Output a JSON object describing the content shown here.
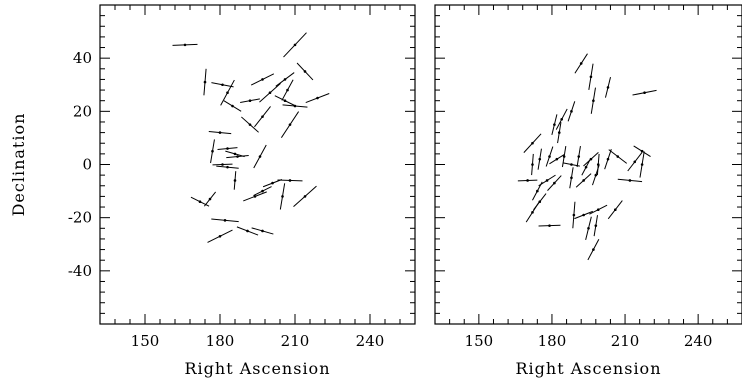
{
  "chart_data": [
    {
      "type": "scatter",
      "marker": "oriented line segment",
      "xlabel": "Right Ascension",
      "ylabel": "Declination",
      "xlim": [
        132,
        258
      ],
      "ylim": [
        -60,
        60
      ],
      "xticks": [
        150,
        180,
        210,
        240
      ],
      "yticks": [
        -40,
        -20,
        0,
        20,
        40
      ],
      "grid": false,
      "vectors": [
        {
          "x": 166,
          "y": 45,
          "len": 10,
          "angle": 2
        },
        {
          "x": 210,
          "y": 45,
          "len": 13,
          "angle": 45
        },
        {
          "x": 174,
          "y": 31,
          "len": 10,
          "angle": 85
        },
        {
          "x": 181,
          "y": 30,
          "len": 9,
          "angle": -10
        },
        {
          "x": 183,
          "y": 27,
          "len": 11,
          "angle": 60
        },
        {
          "x": 197,
          "y": 32,
          "len": 10,
          "angle": 25
        },
        {
          "x": 206,
          "y": 32,
          "len": 9,
          "angle": 35
        },
        {
          "x": 214,
          "y": 35,
          "len": 9,
          "angle": -45
        },
        {
          "x": 200,
          "y": 27,
          "len": 11,
          "angle": 40
        },
        {
          "x": 207,
          "y": 28,
          "len": 9,
          "angle": 60
        },
        {
          "x": 219,
          "y": 25,
          "len": 10,
          "angle": 20
        },
        {
          "x": 192,
          "y": 24,
          "len": 8,
          "angle": 10
        },
        {
          "x": 185,
          "y": 22,
          "len": 8,
          "angle": -30
        },
        {
          "x": 210,
          "y": 22,
          "len": 10,
          "angle": -5
        },
        {
          "x": 206,
          "y": 24,
          "len": 9,
          "angle": -25
        },
        {
          "x": 197,
          "y": 18,
          "len": 10,
          "angle": 50
        },
        {
          "x": 192,
          "y": 15,
          "len": 9,
          "angle": -40
        },
        {
          "x": 208,
          "y": 15,
          "len": 12,
          "angle": 55
        },
        {
          "x": 180,
          "y": 12,
          "len": 9,
          "angle": -5
        },
        {
          "x": 177,
          "y": 5,
          "len": 9,
          "angle": 80
        },
        {
          "x": 183,
          "y": 6,
          "len": 8,
          "angle": 5
        },
        {
          "x": 186,
          "y": 4,
          "len": 8,
          "angle": -15
        },
        {
          "x": 187,
          "y": 3,
          "len": 9,
          "angle": 5
        },
        {
          "x": 181,
          "y": 0,
          "len": 8,
          "angle": 2
        },
        {
          "x": 183,
          "y": -1,
          "len": 9,
          "angle": -5
        },
        {
          "x": 196,
          "y": 3,
          "len": 10,
          "angle": 60
        },
        {
          "x": 186,
          "y": -6,
          "len": 7,
          "angle": 85
        },
        {
          "x": 201,
          "y": -7,
          "len": 8,
          "angle": 20
        },
        {
          "x": 208,
          "y": -6,
          "len": 10,
          "angle": -2
        },
        {
          "x": 205,
          "y": -12,
          "len": 10,
          "angle": 80
        },
        {
          "x": 194,
          "y": -12,
          "len": 10,
          "angle": 20
        },
        {
          "x": 197,
          "y": -10,
          "len": 8,
          "angle": 25
        },
        {
          "x": 214,
          "y": -12,
          "len": 12,
          "angle": 40
        },
        {
          "x": 172,
          "y": -14,
          "len": 8,
          "angle": -25
        },
        {
          "x": 176,
          "y": -13,
          "len": 7,
          "angle": 50
        },
        {
          "x": 182,
          "y": -21,
          "len": 11,
          "angle": -5
        },
        {
          "x": 180,
          "y": -27,
          "len": 11,
          "angle": 25
        },
        {
          "x": 191,
          "y": -25,
          "len": 9,
          "angle": -20
        },
        {
          "x": 197,
          "y": -25,
          "len": 9,
          "angle": -15
        }
      ]
    },
    {
      "type": "scatter",
      "marker": "oriented line segment",
      "xlabel": "Right Ascension",
      "ylabel": "",
      "xlim": [
        132,
        258
      ],
      "ylim": [
        -60,
        60
      ],
      "xticks": [
        150,
        180,
        210,
        240
      ],
      "yticks": [
        -40,
        -20,
        0,
        20,
        40
      ],
      "grid": false,
      "vectors": [
        {
          "x": 192,
          "y": 38,
          "len": 9,
          "angle": 55
        },
        {
          "x": 196,
          "y": 33,
          "len": 10,
          "angle": 80
        },
        {
          "x": 197,
          "y": 24,
          "len": 10,
          "angle": 80
        },
        {
          "x": 203,
          "y": 29,
          "len": 8,
          "angle": 75
        },
        {
          "x": 218,
          "y": 27,
          "len": 10,
          "angle": 10
        },
        {
          "x": 188,
          "y": 20,
          "len": 8,
          "angle": 70
        },
        {
          "x": 181,
          "y": 15,
          "len": 8,
          "angle": 75
        },
        {
          "x": 184,
          "y": 17,
          "len": 9,
          "angle": 60
        },
        {
          "x": 183,
          "y": 12,
          "len": 8,
          "angle": 80
        },
        {
          "x": 172,
          "y": 8,
          "len": 10,
          "angle": 45
        },
        {
          "x": 172,
          "y": 0,
          "len": 8,
          "angle": 85
        },
        {
          "x": 175,
          "y": 2,
          "len": 8,
          "angle": 80
        },
        {
          "x": 179,
          "y": 3,
          "len": 8,
          "angle": 70
        },
        {
          "x": 182,
          "y": 2,
          "len": 7,
          "angle": 30
        },
        {
          "x": 185,
          "y": 3,
          "len": 8,
          "angle": 80
        },
        {
          "x": 188,
          "y": 0,
          "len": 7,
          "angle": -10
        },
        {
          "x": 191,
          "y": 3,
          "len": 8,
          "angle": 80
        },
        {
          "x": 194,
          "y": -1,
          "len": 7,
          "angle": 60
        },
        {
          "x": 196,
          "y": 2,
          "len": 8,
          "angle": 40
        },
        {
          "x": 199,
          "y": 0,
          "len": 8,
          "angle": 85
        },
        {
          "x": 203,
          "y": 2,
          "len": 8,
          "angle": 70
        },
        {
          "x": 207,
          "y": 3,
          "len": 9,
          "angle": -35
        },
        {
          "x": 214,
          "y": 1,
          "len": 9,
          "angle": 50
        },
        {
          "x": 217,
          "y": 0,
          "len": 10,
          "angle": 80
        },
        {
          "x": 212,
          "y": -6,
          "len": 10,
          "angle": -5
        },
        {
          "x": 217,
          "y": 5,
          "len": 8,
          "angle": -30
        },
        {
          "x": 170,
          "y": -6,
          "len": 8,
          "angle": 2
        },
        {
          "x": 178,
          "y": -6,
          "len": 8,
          "angle": 30
        },
        {
          "x": 174,
          "y": -10,
          "len": 8,
          "angle": 60
        },
        {
          "x": 181,
          "y": -7,
          "len": 8,
          "angle": 45
        },
        {
          "x": 188,
          "y": -5,
          "len": 8,
          "angle": 80
        },
        {
          "x": 193,
          "y": -6,
          "len": 8,
          "angle": 40
        },
        {
          "x": 198,
          "y": -4,
          "len": 8,
          "angle": 70
        },
        {
          "x": 172,
          "y": -18,
          "len": 9,
          "angle": 55
        },
        {
          "x": 175,
          "y": -14,
          "len": 8,
          "angle": 50
        },
        {
          "x": 179,
          "y": -23,
          "len": 9,
          "angle": 2
        },
        {
          "x": 189,
          "y": -19,
          "len": 10,
          "angle": 85
        },
        {
          "x": 193,
          "y": -19,
          "len": 8,
          "angle": 20
        },
        {
          "x": 199,
          "y": -17,
          "len": 8,
          "angle": 25
        },
        {
          "x": 195,
          "y": -24,
          "len": 9,
          "angle": 75
        },
        {
          "x": 198,
          "y": -23,
          "len": 8,
          "angle": 80
        },
        {
          "x": 197,
          "y": -32,
          "len": 9,
          "angle": 60
        },
        {
          "x": 206,
          "y": -17,
          "len": 9,
          "angle": 50
        }
      ]
    }
  ]
}
